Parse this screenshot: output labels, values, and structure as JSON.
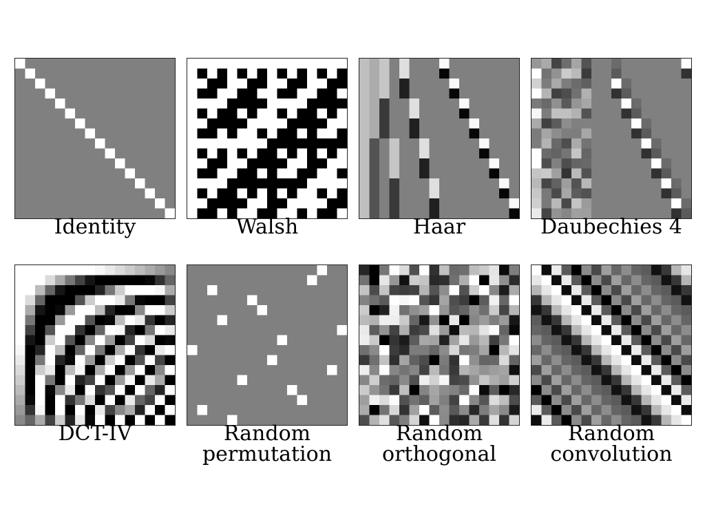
{
  "panels": [
    {
      "id": "identity",
      "caption_lines": [
        "Identity"
      ],
      "kind": "identity"
    },
    {
      "id": "walsh",
      "caption_lines": [
        "Walsh"
      ],
      "kind": "walsh"
    },
    {
      "id": "haar",
      "caption_lines": [
        "Haar"
      ],
      "kind": "haar"
    },
    {
      "id": "daubechies",
      "caption_lines": [
        "Daubechies 4"
      ],
      "kind": "daub"
    },
    {
      "id": "dct",
      "caption_lines": [
        "DCT-IV"
      ],
      "kind": "dct"
    },
    {
      "id": "random-permutation",
      "caption_lines": [
        "Random",
        "permutation"
      ],
      "kind": "perm"
    },
    {
      "id": "random-orthogonal",
      "caption_lines": [
        "Random",
        "orthogonal"
      ],
      "kind": "rortho"
    },
    {
      "id": "random-convolution",
      "caption_lines": [
        "Random",
        "convolution"
      ],
      "kind": "rconv"
    }
  ],
  "matrix_size": 16,
  "colors": {
    "background": "#808080",
    "positive": "#ffffff",
    "negative": "#000000"
  }
}
